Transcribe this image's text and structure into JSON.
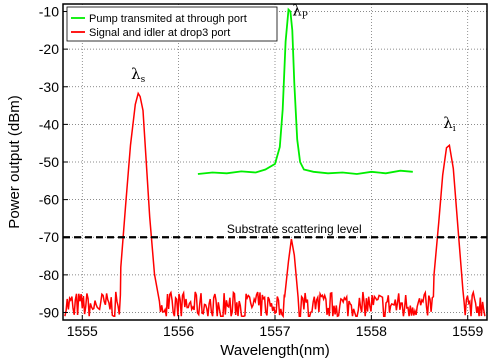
{
  "chart_data": {
    "type": "line",
    "xlabel": "Wavelength(nm)",
    "ylabel": "Power output (dBm)",
    "xlim": [
      1554.8,
      1559.2
    ],
    "ylim": [
      -92,
      -8
    ],
    "xticks": [
      1555,
      1556,
      1557,
      1558,
      1559
    ],
    "yticks": [
      -10,
      -20,
      -30,
      -40,
      -50,
      -60,
      -70,
      -80,
      -90
    ],
    "grid": true,
    "legend_position": "top-left",
    "series": [
      {
        "name": "Pump transmited at through port",
        "color": "#00ee00",
        "x": [
          1556.2,
          1556.35,
          1556.5,
          1556.65,
          1556.8,
          1556.9,
          1557.0,
          1557.05,
          1557.08,
          1557.11,
          1557.14,
          1557.16,
          1557.18,
          1557.2,
          1557.23,
          1557.26,
          1557.3,
          1557.4,
          1557.55,
          1557.7,
          1557.85,
          1558.0,
          1558.15,
          1558.3,
          1558.43
        ],
        "y": [
          -53.2,
          -52.8,
          -53.0,
          -52.5,
          -52.8,
          -52.0,
          -50.5,
          -46,
          -36,
          -18,
          -9.5,
          -10,
          -15,
          -29,
          -44,
          -50,
          -52,
          -52.6,
          -53.0,
          -52.8,
          -53.2,
          -52.6,
          -53.0,
          -52.3,
          -52.6
        ]
      },
      {
        "name": "Signal and idler at drop3 port",
        "color": "#ff0000",
        "x": [
          1555.4,
          1555.45,
          1555.5,
          1555.55,
          1555.58,
          1555.6,
          1555.63,
          1555.66,
          1555.7,
          1555.75,
          1555.8,
          1557.1,
          1557.14,
          1557.17,
          1557.2,
          1557.24,
          1558.65,
          1558.7,
          1558.74,
          1558.78,
          1558.81,
          1558.85,
          1558.9,
          1558.95
        ],
        "y": [
          -78,
          -62,
          -46,
          -35,
          -31.5,
          -32,
          -36,
          -48,
          -64,
          -80,
          -87,
          -86,
          -76,
          -71,
          -75,
          -86,
          -80,
          -66,
          -54,
          -46,
          -45,
          -52,
          -68,
          -84
        ],
        "noise_floor": -88
      }
    ],
    "annotations": [
      {
        "text": "Substrate scattering level",
        "y": -70,
        "style": "dashed-line"
      },
      {
        "text": "λs",
        "x": 1555.58,
        "y": -28
      },
      {
        "text": "λP",
        "x": 1557.26,
        "y": -11
      },
      {
        "text": "λi",
        "x": 1558.81,
        "y": -41
      }
    ]
  }
}
